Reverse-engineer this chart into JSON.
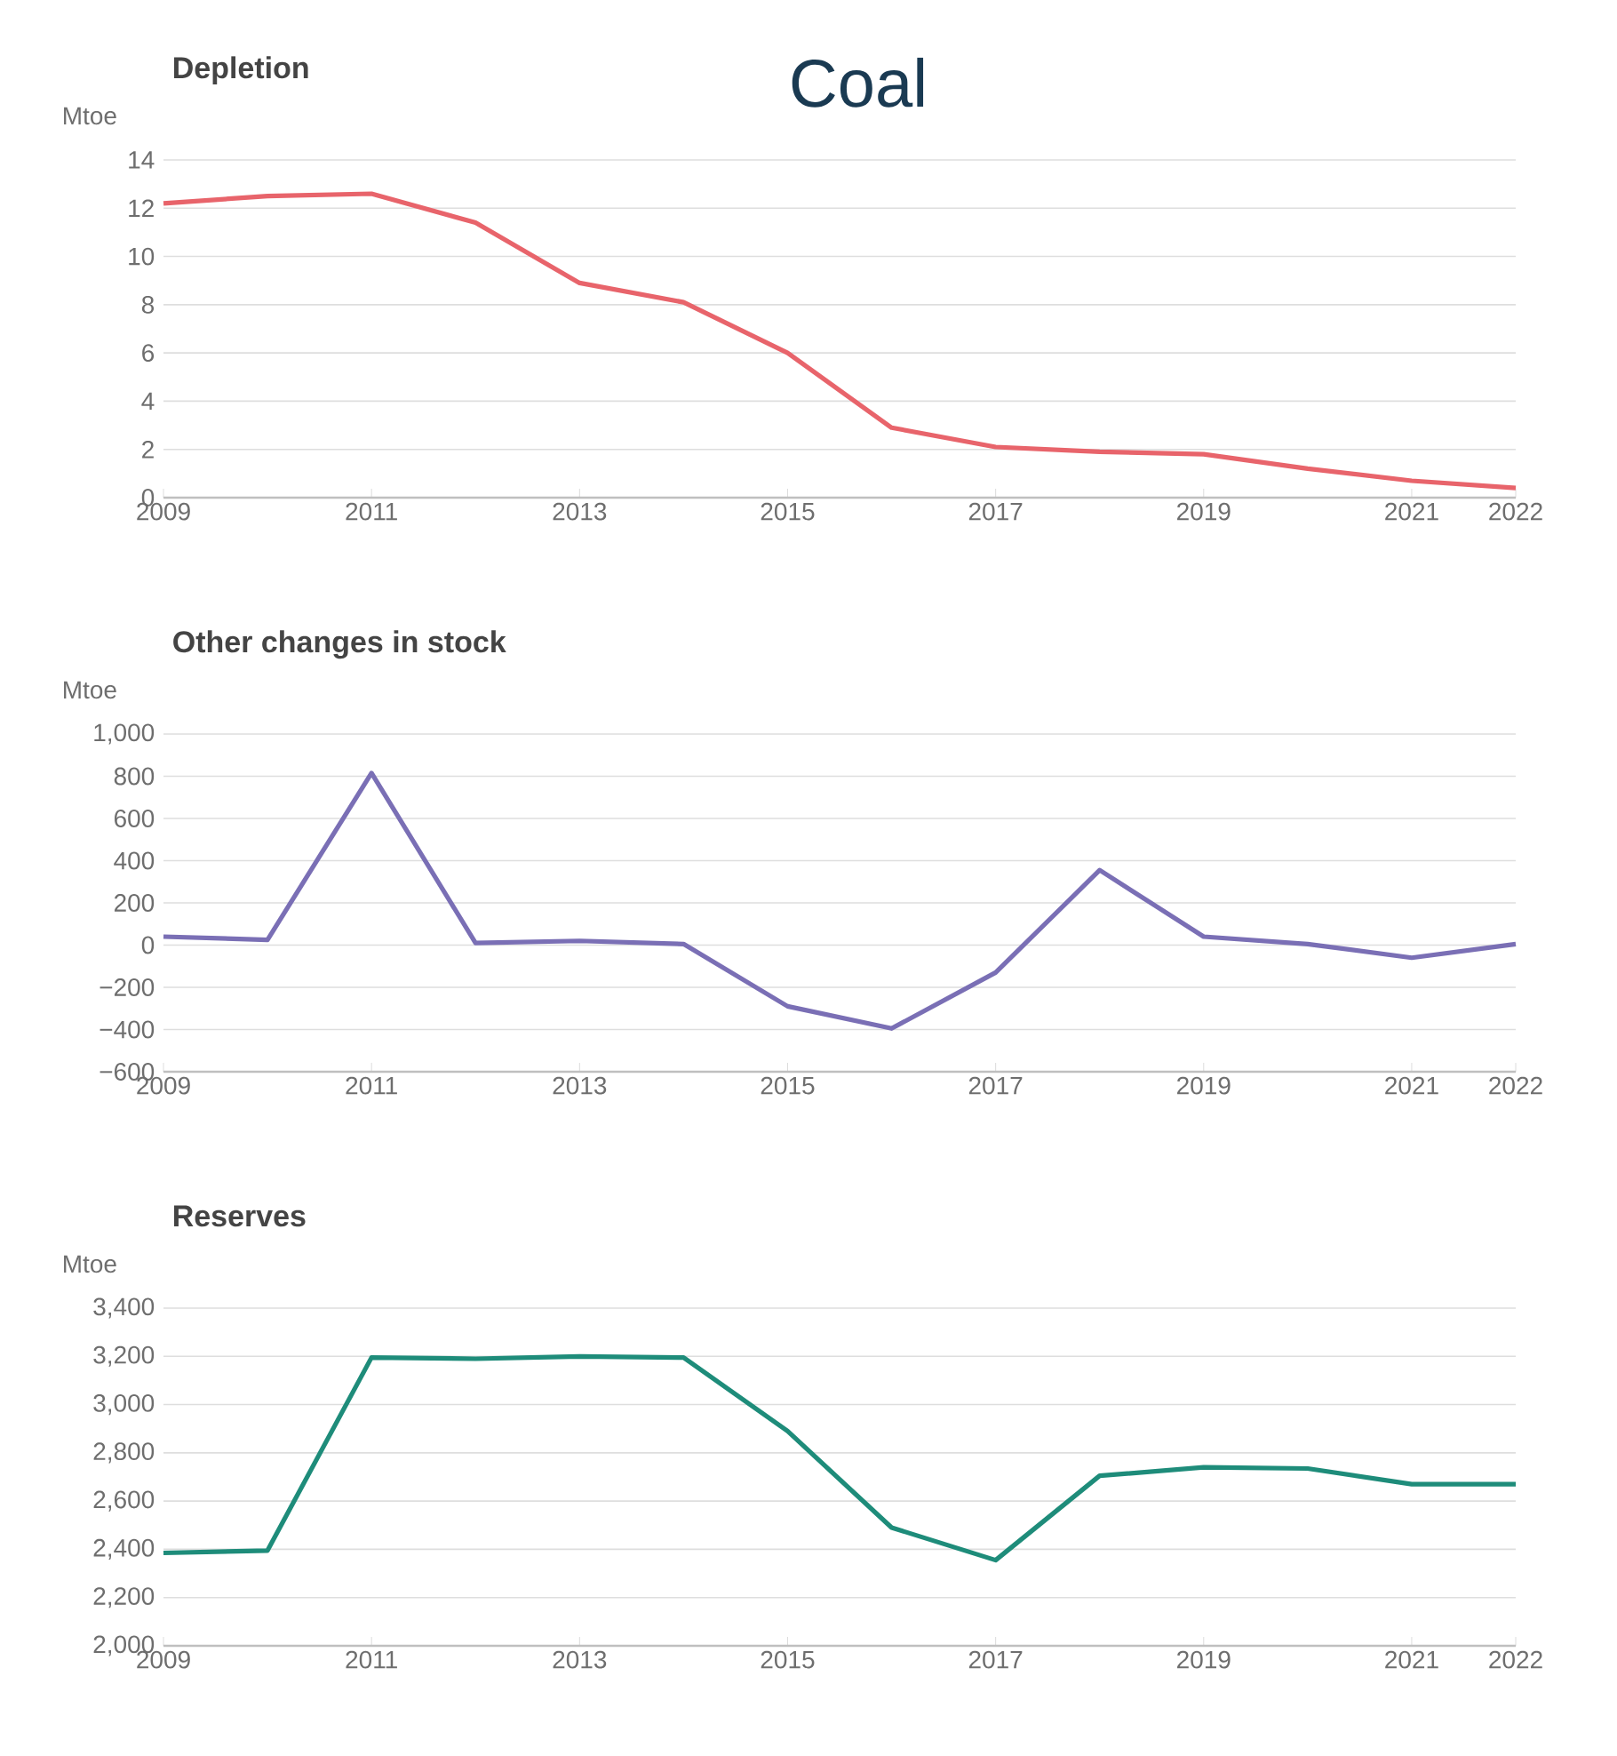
{
  "chart_data": [
    {
      "type": "line",
      "title": "Coal",
      "subtitle": "Depletion",
      "ylabel": "Mtoe",
      "grid": "y",
      "x": [
        2009,
        2010,
        2011,
        2012,
        2013,
        2014,
        2015,
        2016,
        2017,
        2018,
        2019,
        2020,
        2021,
        2022
      ],
      "series": [
        {
          "color": "#e8646b",
          "values": [
            12.2,
            12.5,
            12.6,
            11.4,
            8.9,
            8.1,
            6.0,
            2.9,
            2.1,
            1.9,
            1.8,
            1.2,
            0.7,
            0.4
          ]
        }
      ],
      "xlim": [
        2009,
        2022
      ],
      "xticks": [
        2009,
        2011,
        2013,
        2015,
        2017,
        2019,
        2021,
        2022
      ],
      "ylim": [
        0,
        14
      ],
      "yticks": [
        0,
        2,
        4,
        6,
        8,
        10,
        12,
        14
      ]
    },
    {
      "type": "line",
      "title": "Other changes in stock",
      "ylabel": "Mtoe",
      "grid": "y",
      "x": [
        2009,
        2010,
        2011,
        2012,
        2013,
        2014,
        2015,
        2016,
        2017,
        2018,
        2019,
        2020,
        2021,
        2022
      ],
      "series": [
        {
          "color": "#7a6fb5",
          "values": [
            40,
            25,
            815,
            10,
            20,
            5,
            -290,
            -395,
            -130,
            355,
            40,
            5,
            -60,
            5
          ]
        }
      ],
      "xlim": [
        2009,
        2022
      ],
      "xticks": [
        2009,
        2011,
        2013,
        2015,
        2017,
        2019,
        2021,
        2022
      ],
      "ylim": [
        -600,
        1000
      ],
      "yticks": [
        {
          "value": -600,
          "label": "−600"
        },
        {
          "value": -400,
          "label": "−400"
        },
        {
          "value": -200,
          "label": "−200"
        },
        0,
        200,
        400,
        600,
        800,
        {
          "value": 1000,
          "label": "1,000"
        }
      ]
    },
    {
      "type": "line",
      "title": "Reserves",
      "ylabel": "Mtoe",
      "grid": "y",
      "x": [
        2009,
        2010,
        2011,
        2012,
        2013,
        2014,
        2015,
        2016,
        2017,
        2018,
        2019,
        2020,
        2021,
        2022
      ],
      "series": [
        {
          "color": "#1e8c7a",
          "values": [
            2385,
            2395,
            3195,
            3190,
            3200,
            3195,
            2890,
            2490,
            2355,
            2705,
            2740,
            2735,
            2670,
            2670
          ]
        }
      ],
      "xlim": [
        2009,
        2022
      ],
      "xticks": [
        2009,
        2011,
        2013,
        2015,
        2017,
        2019,
        2021,
        2022
      ],
      "ylim": [
        2000,
        3400
      ],
      "yticks": [
        {
          "value": 2000,
          "label": "2,000"
        },
        {
          "value": 2200,
          "label": "2,200"
        },
        {
          "value": 2400,
          "label": "2,400"
        },
        {
          "value": 2600,
          "label": "2,600"
        },
        {
          "value": 2800,
          "label": "2,800"
        },
        {
          "value": 3000,
          "label": "3,000"
        },
        {
          "value": 3200,
          "label": "3,200"
        },
        {
          "value": 3400,
          "label": "3,400"
        }
      ]
    }
  ]
}
